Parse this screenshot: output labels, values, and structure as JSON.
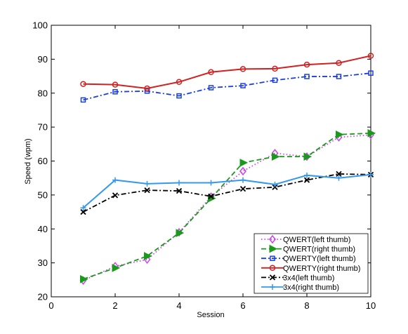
{
  "chart_data": {
    "type": "line",
    "xlabel": "Session",
    "ylabel": "Speed (wpm)",
    "xlim": [
      0,
      10
    ],
    "ylim": [
      20,
      100
    ],
    "xticks": [
      0,
      2,
      4,
      6,
      8,
      10
    ],
    "yticks": [
      20,
      30,
      40,
      50,
      60,
      70,
      80,
      90,
      100
    ],
    "grid": false,
    "legend_position": "bottom-right",
    "x": [
      1,
      2,
      3,
      4,
      5,
      6,
      7,
      8,
      9,
      10
    ],
    "series": [
      {
        "name": "QWERT(left thumb)",
        "color": "#cc44ee",
        "marker": "diamond",
        "dash": "dotted",
        "values": [
          24.8,
          29.0,
          31.0,
          39.0,
          49.5,
          57.0,
          62.3,
          61.3,
          67.0,
          67.7
        ]
      },
      {
        "name": "QWERT(right thumb)",
        "color": "#1a9a1a",
        "marker": "triangle-right",
        "dash": "dashed",
        "values": [
          25.2,
          28.5,
          32.0,
          38.8,
          49.0,
          59.5,
          61.3,
          61.3,
          67.8,
          68.2
        ]
      },
      {
        "name": "QWERTY(left thumb)",
        "color": "#1a3fe0",
        "marker": "square",
        "dash": "dashdot",
        "values": [
          78.0,
          80.4,
          80.6,
          79.2,
          81.6,
          82.2,
          83.8,
          84.9,
          84.9,
          85.9
        ]
      },
      {
        "name": "QWERTY(right thumb)",
        "color": "#d42020",
        "marker": "circle",
        "dash": "solid",
        "values": [
          82.7,
          82.5,
          81.4,
          83.3,
          86.2,
          87.1,
          87.2,
          88.4,
          88.9,
          91.0
        ]
      },
      {
        "name": "3x4(left thumb)",
        "color": "#000000",
        "marker": "x",
        "dash": "dashdot",
        "values": [
          45.0,
          49.9,
          51.4,
          51.2,
          49.6,
          51.8,
          52.3,
          54.4,
          56.2,
          56.0
        ]
      },
      {
        "name": "3x4(right thumb)",
        "color": "#3399ee",
        "marker": "plus",
        "dash": "solid",
        "values": [
          46.2,
          54.4,
          53.3,
          53.6,
          53.6,
          54.4,
          53.1,
          55.8,
          55.0,
          56.0
        ]
      }
    ]
  }
}
